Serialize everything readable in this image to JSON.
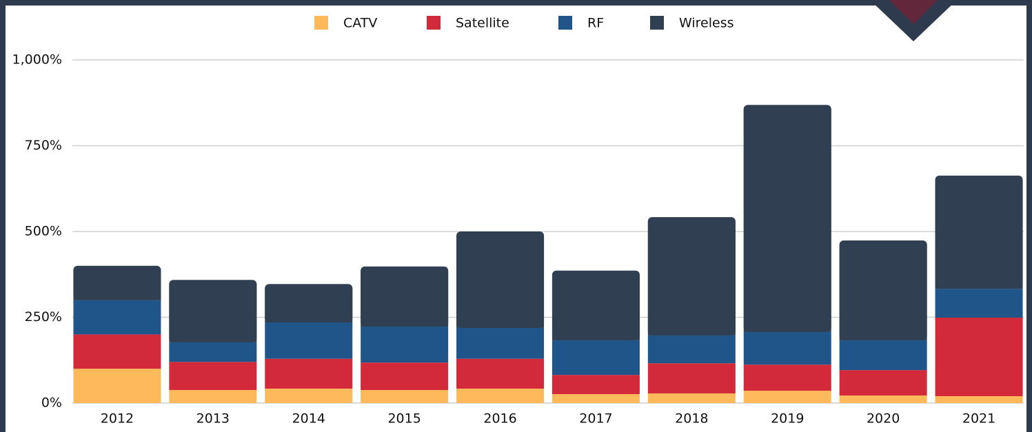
{
  "chart_data": {
    "type": "stacked-bar",
    "categories": [
      "2012",
      "2013",
      "2014",
      "2015",
      "2016",
      "2017",
      "2018",
      "2019",
      "2020",
      "2021"
    ],
    "series": [
      {
        "name": "CATV",
        "color": "#fdb95a",
        "values": [
          100,
          38,
          42,
          38,
          42,
          26,
          28,
          36,
          22,
          20
        ]
      },
      {
        "name": "Satellite",
        "color": "#d22a3a",
        "values": [
          100,
          82,
          87,
          80,
          87,
          56,
          88,
          76,
          74,
          229
        ]
      },
      {
        "name": "RF",
        "color": "#20558a",
        "values": [
          100,
          57,
          106,
          105,
          90,
          101,
          81,
          95,
          87,
          84
        ]
      },
      {
        "name": "Wireless",
        "color": "#304052",
        "values": [
          100,
          182,
          112,
          175,
          281,
          203,
          345,
          662,
          291,
          330
        ]
      }
    ],
    "ylim": [
      0,
      1000
    ],
    "yticks": [
      {
        "value": 0,
        "label": "0%"
      },
      {
        "value": 250,
        "label": "250%"
      },
      {
        "value": 500,
        "label": "500%"
      },
      {
        "value": 750,
        "label": "750%"
      },
      {
        "value": 1000,
        "label": "1,000%"
      }
    ],
    "grid": true
  }
}
